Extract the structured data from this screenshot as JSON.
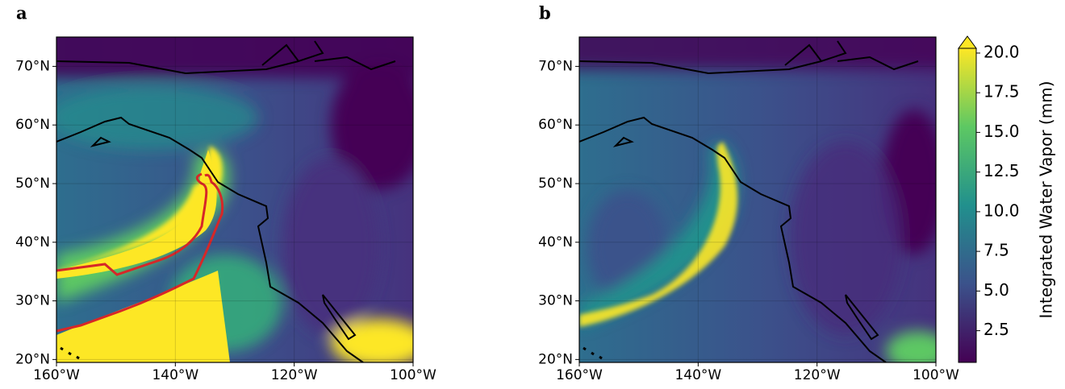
{
  "chart_data": [
    {
      "type": "map",
      "label": "a",
      "xlim": [
        -160,
        -100
      ],
      "ylim": [
        19.5,
        75
      ],
      "xticks": [
        {
          "value": -160,
          "label": "160°W"
        },
        {
          "value": -140,
          "label": "140°W"
        },
        {
          "value": -120,
          "label": "120°W"
        },
        {
          "value": -100,
          "label": "100°W"
        }
      ],
      "yticks": [
        {
          "value": 20,
          "label": "20°N"
        },
        {
          "value": 30,
          "label": "30°N"
        },
        {
          "value": 40,
          "label": "40°N"
        },
        {
          "value": 50,
          "label": "50°N"
        },
        {
          "value": 60,
          "label": "60°N"
        },
        {
          "value": 70,
          "label": "70°N"
        }
      ],
      "grid": true
    },
    {
      "type": "map",
      "label": "b",
      "xlim": [
        -160,
        -100
      ],
      "ylim": [
        19.5,
        75
      ],
      "xticks": [
        {
          "value": -160,
          "label": "160°W"
        },
        {
          "value": -140,
          "label": "140°W"
        },
        {
          "value": -120,
          "label": "120°W"
        },
        {
          "value": -100,
          "label": "100°W"
        }
      ],
      "yticks": [
        {
          "value": 20,
          "label": "20°N"
        },
        {
          "value": 30,
          "label": "30°N"
        },
        {
          "value": 40,
          "label": "40°N"
        },
        {
          "value": 50,
          "label": "50°N"
        },
        {
          "value": 60,
          "label": "60°N"
        },
        {
          "value": 70,
          "label": "70°N"
        }
      ],
      "grid": true
    },
    {
      "type": "colorbar",
      "label": "Integrated Water Vapor (mm)",
      "lim": [
        0.5,
        20.3
      ],
      "ticks": [
        2.5,
        {
          "value": 5,
          "label": "5.0"
        },
        7.5,
        {
          "value": 10,
          "label": "10.0"
        },
        12.5,
        {
          "value": 15,
          "label": "15.0"
        },
        17.5,
        {
          "value": 20,
          "label": "20.0"
        }
      ]
    }
  ]
}
